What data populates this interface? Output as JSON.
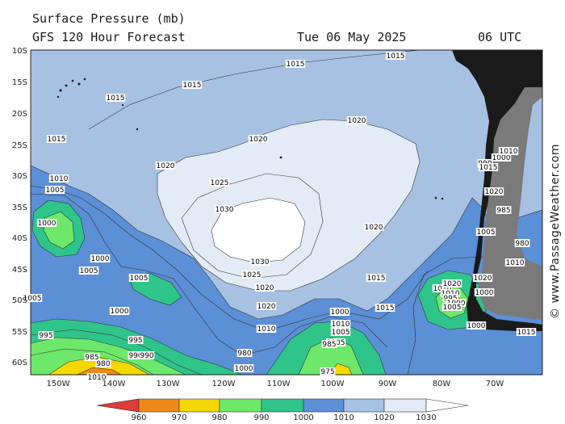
{
  "header": {
    "title": "Surface Pressure (mb)",
    "subtitle": "GFS 120 Hour Forecast",
    "date": "Tue 06 May 2025",
    "time": "06 UTC"
  },
  "credit": "© www.PassageWeather.com",
  "axes": {
    "lat_ticks": [
      "10S",
      "15S",
      "20S",
      "25S",
      "30S",
      "35S",
      "40S",
      "45S",
      "50S",
      "55S",
      "60S"
    ],
    "lon_ticks": [
      "150W",
      "140W",
      "130W",
      "120W",
      "110W",
      "100W",
      "90W",
      "80W",
      "70W"
    ]
  },
  "colors": {
    "below_960": "#e03a3a",
    "960_970": "#ee8a1a",
    "970_980": "#f5d800",
    "980_990": "#6ee86a",
    "990_1000": "#2fc48a",
    "1000_1010": "#5b8fd6",
    "1010_1020": "#a7c1e2",
    "1020_1030": "#e3ebf6",
    "above_1030": "#ffffff",
    "land": "#1a1a1a"
  },
  "legend": {
    "labels": [
      "960",
      "970",
      "980",
      "990",
      "1000",
      "1010",
      "1020",
      "1030"
    ]
  },
  "map": {
    "high_center_label": "1030",
    "isobar_labels": [
      "1015",
      "1015",
      "1015",
      "1015",
      "1015",
      "1020",
      "1020",
      "1020",
      "1020",
      "1025",
      "1030",
      "1030",
      "1025",
      "1020",
      "1020",
      "1015",
      "1015",
      "1010",
      "1010",
      "1010",
      "1005",
      "1005",
      "1005",
      "1000",
      "1000",
      "1000",
      "1005",
      "1005",
      "1000",
      "995",
      "995",
      "990",
      "990",
      "985",
      "985",
      "980",
      "975",
      "980",
      "1000",
      "1005",
      "1010",
      "1010",
      "1015",
      "1020",
      "1020",
      "1010",
      "1010",
      "1000",
      "995",
      "1000",
      "1005",
      "1000",
      "990",
      "985",
      "980",
      "1000",
      "1020",
      "1015",
      "1010",
      "1005",
      "1015"
    ]
  }
}
